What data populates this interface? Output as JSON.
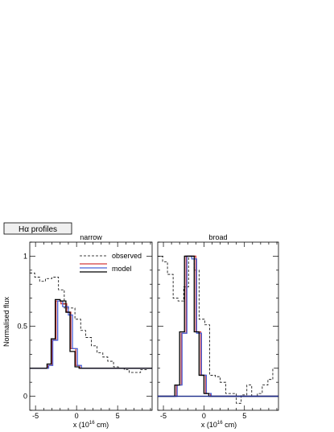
{
  "page_title": "Hα profiles",
  "y_axis_label": "Normalised flux",
  "x_axis_label": "x (10",
  "x_axis_exp": "16",
  "x_axis_unit": " cm)",
  "colors": {
    "observed": "#000000",
    "model_red": "#d43a3a",
    "model_blue": "#4a63d8",
    "model_black": "#000000",
    "model_navy": "#1a2a8a"
  },
  "chart_data": [
    {
      "type": "line",
      "title": "narrow",
      "x_ticks": [
        -5,
        0,
        5
      ],
      "y_ticks": [
        0,
        0.5,
        1
      ],
      "xlim": [
        -5.7,
        9.2
      ],
      "ylim": [
        -0.1,
        1.1
      ],
      "legend": [
        {
          "name": "observed",
          "style": "dashed"
        },
        {
          "name": "model",
          "style": "solid"
        }
      ],
      "series": [
        {
          "name": "observed",
          "style": "dashed",
          "x": [
            -5.7,
            -5.1,
            -4.5,
            -3.8,
            -3.0,
            -2.2,
            -1.5,
            -0.8,
            -0.2,
            0.5,
            1.1,
            1.8,
            2.5,
            3.2,
            3.8,
            4.5,
            5.1,
            5.8,
            6.4,
            7.1,
            7.8,
            8.5,
            9.2
          ],
          "y": [
            0.88,
            0.85,
            0.82,
            0.84,
            0.85,
            0.76,
            0.63,
            0.63,
            0.55,
            0.47,
            0.42,
            0.36,
            0.31,
            0.28,
            0.25,
            0.21,
            0.2,
            0.19,
            0.17,
            0.17,
            0.19,
            0.2,
            0.2
          ]
        },
        {
          "name": "model (red)",
          "style": "solid",
          "color": "#d43a3a",
          "x": [
            -5.7,
            -4.2,
            -3.5,
            -3.0,
            -2.5,
            -1.9,
            -1.2,
            -0.7,
            -0.1,
            0.4,
            1.0,
            9.2
          ],
          "y": [
            0.2,
            0.2,
            0.22,
            0.4,
            0.68,
            0.66,
            0.6,
            0.34,
            0.22,
            0.2,
            0.2,
            0.2
          ]
        },
        {
          "name": "model (blue)",
          "style": "solid",
          "color": "#4a63d8",
          "x": [
            -5.7,
            -4.1,
            -3.4,
            -2.9,
            -2.3,
            -1.7,
            -1.0,
            -0.5,
            0.1,
            0.6,
            1.2,
            9.2
          ],
          "y": [
            0.2,
            0.2,
            0.22,
            0.4,
            0.68,
            0.64,
            0.58,
            0.34,
            0.22,
            0.2,
            0.2,
            0.2
          ]
        },
        {
          "name": "model (black)",
          "style": "solid",
          "color": "#000000",
          "x": [
            -5.7,
            -4.3,
            -3.6,
            -3.1,
            -2.6,
            -2.0,
            -1.3,
            -0.8,
            -0.2,
            0.3,
            0.9,
            9.2
          ],
          "y": [
            0.2,
            0.2,
            0.23,
            0.41,
            0.69,
            0.68,
            0.6,
            0.32,
            0.21,
            0.2,
            0.2,
            0.2
          ]
        }
      ]
    },
    {
      "type": "line",
      "title": "broad",
      "x_ticks": [
        -5,
        0,
        5
      ],
      "y_ticks": [
        0,
        0.5,
        1
      ],
      "xlim": [
        -5.7,
        9.2
      ],
      "ylim": [
        -0.1,
        1.1
      ],
      "series": [
        {
          "name": "observed",
          "style": "dashed",
          "x": [
            -5.7,
            -5.1,
            -4.5,
            -3.8,
            -3.2,
            -2.5,
            -1.9,
            -1.2,
            -0.6,
            0.1,
            0.7,
            1.4,
            2.0,
            2.7,
            3.3,
            4.0,
            4.6,
            5.3,
            5.9,
            6.6,
            7.2,
            7.9,
            8.5,
            9.2
          ],
          "y": [
            1.0,
            0.96,
            0.87,
            0.7,
            0.68,
            0.78,
            1.0,
            0.9,
            0.55,
            0.51,
            0.15,
            0.14,
            0.1,
            0.02,
            0.02,
            -0.05,
            0.01,
            0.08,
            0.0,
            0.02,
            0.08,
            0.12,
            0.2,
            0.2
          ]
        },
        {
          "name": "model (red)",
          "style": "solid",
          "color": "#d43a3a",
          "x": [
            -5.7,
            -4.0,
            -3.4,
            -2.8,
            -2.2,
            -1.6,
            -1.0,
            -0.4,
            0.2,
            0.8,
            9.2
          ],
          "y": [
            0.0,
            0.0,
            0.08,
            0.45,
            1.0,
            1.0,
            0.46,
            0.15,
            0.02,
            0.0,
            0.0
          ]
        },
        {
          "name": "model (blue)",
          "style": "solid",
          "color": "#4a63d8",
          "x": [
            -5.7,
            -3.9,
            -3.3,
            -2.7,
            -2.1,
            -1.5,
            -0.9,
            -0.3,
            0.3,
            0.9,
            9.2
          ],
          "y": [
            0.0,
            0.0,
            0.08,
            0.45,
            1.0,
            0.98,
            0.45,
            0.15,
            0.02,
            0.0,
            0.0
          ]
        },
        {
          "name": "model (black)",
          "style": "solid",
          "color": "#000000",
          "x": [
            -5.7,
            -4.2,
            -3.6,
            -3.0,
            -2.4,
            -1.8,
            -1.2,
            -0.6,
            0.0,
            0.6,
            9.2
          ],
          "y": [
            0.0,
            0.0,
            0.08,
            0.46,
            1.0,
            1.0,
            0.46,
            0.15,
            0.02,
            0.0,
            0.0
          ]
        },
        {
          "name": "model (navy)",
          "style": "solid",
          "color": "#1a2a8a",
          "x": [
            -5.7,
            0.6,
            9.2
          ],
          "y": [
            0.0,
            0.0,
            0.0
          ]
        }
      ]
    }
  ]
}
